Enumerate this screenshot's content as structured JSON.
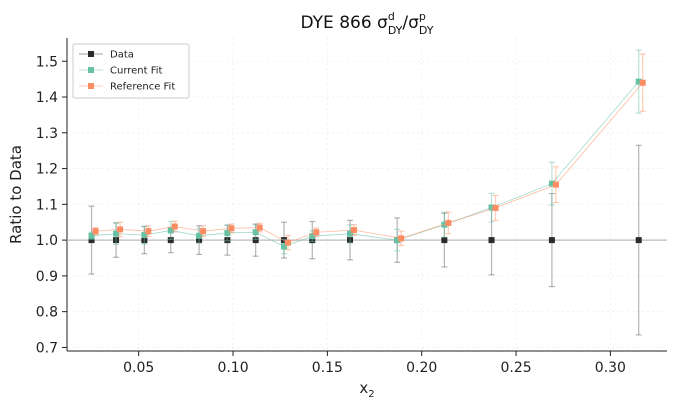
{
  "chart_data": {
    "type": "scatter",
    "title": {
      "prefix": "DYE 866 ",
      "num_symbol": "σ",
      "num_sup": "d",
      "num_sub": "DY",
      "slash": "/",
      "den_symbol": "σ",
      "den_sup": "p",
      "den_sub": "DY"
    },
    "xlabel": {
      "symbol": "x",
      "sub": "2"
    },
    "ylabel": "Ratio to Data",
    "xlim": [
      0.012,
      0.33
    ],
    "ylim": [
      0.69,
      1.565
    ],
    "xticks": [
      0.05,
      0.1,
      0.15,
      0.2,
      0.25,
      0.3
    ],
    "xtick_labels": [
      "0.05",
      "0.10",
      "0.15",
      "0.20",
      "0.25",
      "0.30"
    ],
    "yticks": [
      0.7,
      0.8,
      0.9,
      1.0,
      1.1,
      1.2,
      1.3,
      1.4,
      1.5
    ],
    "ytick_labels": [
      "0.7",
      "0.8",
      "0.9",
      "1.0",
      "1.1",
      "1.2",
      "1.3",
      "1.4",
      "1.5"
    ],
    "grid": true,
    "reference_line": 1.0,
    "legend_position": "upper-left",
    "series": [
      {
        "name": "Data",
        "color": "#2b2b2b",
        "x": [
          0.025,
          0.038,
          0.053,
          0.067,
          0.082,
          0.097,
          0.112,
          0.127,
          0.142,
          0.162,
          0.187,
          0.212,
          0.237,
          0.269,
          0.315
        ],
        "y": [
          1.0,
          1.0,
          1.0,
          1.0,
          1.0,
          1.0,
          1.0,
          1.0,
          1.0,
          1.0,
          1.0,
          1.0,
          1.0,
          1.0,
          1.0
        ],
        "err": [
          0.095,
          0.048,
          0.038,
          0.035,
          0.04,
          0.042,
          0.045,
          0.05,
          0.052,
          0.055,
          0.062,
          0.075,
          0.097,
          0.13,
          0.265
        ]
      },
      {
        "name": "Current Fit",
        "color": "#66c2a5",
        "x": [
          0.025,
          0.038,
          0.053,
          0.067,
          0.082,
          0.097,
          0.112,
          0.127,
          0.142,
          0.162,
          0.187,
          0.212,
          0.237,
          0.269,
          0.315
        ],
        "y": [
          1.012,
          1.018,
          1.014,
          1.027,
          1.012,
          1.02,
          1.022,
          0.982,
          1.011,
          1.018,
          1.0,
          1.043,
          1.091,
          1.158,
          1.443
        ],
        "err": [
          0.01,
          0.03,
          0.025,
          0.025,
          0.02,
          0.022,
          0.02,
          0.02,
          0.015,
          0.025,
          0.03,
          0.035,
          0.04,
          0.06,
          0.088
        ]
      },
      {
        "name": "Reference Fit",
        "color": "#fc8d62",
        "x": [
          0.025,
          0.038,
          0.053,
          0.067,
          0.082,
          0.097,
          0.112,
          0.127,
          0.142,
          0.162,
          0.187,
          0.212,
          0.237,
          0.269,
          0.315
        ],
        "y": [
          1.025,
          1.03,
          1.025,
          1.038,
          1.025,
          1.033,
          1.035,
          0.993,
          1.022,
          1.028,
          1.005,
          1.048,
          1.09,
          1.155,
          1.44
        ],
        "err": [
          0.01,
          0.02,
          0.015,
          0.015,
          0.015,
          0.012,
          0.012,
          0.02,
          0.012,
          0.015,
          0.02,
          0.03,
          0.035,
          0.05,
          0.08
        ]
      }
    ]
  }
}
